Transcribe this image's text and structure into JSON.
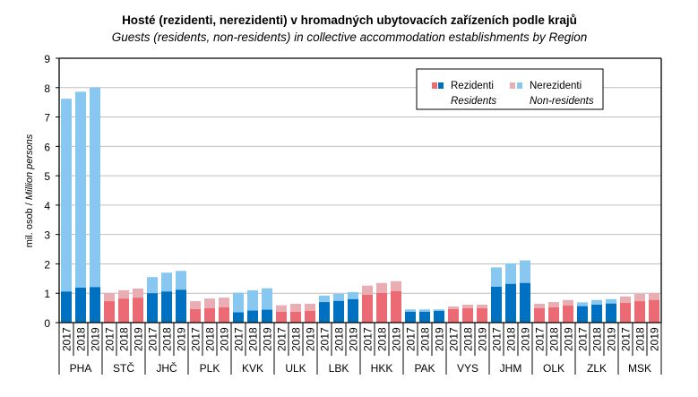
{
  "chart_data": {
    "type": "bar",
    "stacked": true,
    "title": "Hosté (rezidenti, nerezidenti) v hromadných ubytovacích zařízeních podle krajů",
    "subtitle": "Guests (residents, non-residents) in collective accommodation establishments by Region",
    "ylabel_cz": "mil. osob / ",
    "ylabel_en": "Million persons",
    "ylim": [
      0,
      9
    ],
    "yticks": [
      "0",
      "1",
      "2",
      "3",
      "4",
      "5",
      "6",
      "7",
      "8",
      "9"
    ],
    "grid": true,
    "years": [
      "2017",
      "2018",
      "2019"
    ],
    "regions": [
      "PHA",
      "STČ",
      "JHČ",
      "PLK",
      "KVK",
      "ULK",
      "LBK",
      "HKK",
      "PAK",
      "VYS",
      "JHM",
      "OLK",
      "ZLK",
      "MSK"
    ],
    "region_color_set": [
      "blue",
      "red",
      "blue",
      "red",
      "blue",
      "red",
      "blue",
      "red",
      "blue",
      "red",
      "blue",
      "red",
      "blue",
      "red"
    ],
    "residents": [
      [
        1.06,
        1.19,
        1.21
      ],
      [
        0.73,
        0.82,
        0.85
      ],
      [
        1.0,
        1.06,
        1.12
      ],
      [
        0.46,
        0.49,
        0.52
      ],
      [
        0.35,
        0.41,
        0.44
      ],
      [
        0.37,
        0.37,
        0.4
      ],
      [
        0.7,
        0.74,
        0.8
      ],
      [
        0.95,
        1.01,
        1.07
      ],
      [
        0.37,
        0.37,
        0.4
      ],
      [
        0.46,
        0.49,
        0.49
      ],
      [
        1.22,
        1.32,
        1.35
      ],
      [
        0.49,
        0.52,
        0.58
      ],
      [
        0.56,
        0.61,
        0.65
      ],
      [
        0.67,
        0.73,
        0.77
      ]
    ],
    "totals": [
      [
        7.62,
        7.86,
        8.01
      ],
      [
        1.01,
        1.1,
        1.16
      ],
      [
        1.55,
        1.7,
        1.76
      ],
      [
        0.73,
        0.82,
        0.85
      ],
      [
        1.02,
        1.1,
        1.17
      ],
      [
        0.59,
        0.64,
        0.64
      ],
      [
        0.92,
        0.98,
        1.04
      ],
      [
        1.26,
        1.35,
        1.41
      ],
      [
        0.45,
        0.45,
        0.45
      ],
      [
        0.55,
        0.61,
        0.61
      ],
      [
        1.88,
        2.02,
        2.12
      ],
      [
        0.64,
        0.7,
        0.77
      ],
      [
        0.69,
        0.77,
        0.8
      ],
      [
        0.89,
        0.98,
        1.01
      ]
    ],
    "legend": {
      "placement": "top-right",
      "residents_cz": "Rezidenti",
      "residents_en": "Residents",
      "nonresidents_cz": "Nerezidenti",
      "nonresidents_en": "Non-residents"
    },
    "colors": {
      "resident_blue": "#0070C0",
      "nonresident_blue": "#88C8F0",
      "resident_red": "#EC6A73",
      "nonresident_red": "#E8AEB3",
      "grid": "#BFBFBF"
    }
  }
}
